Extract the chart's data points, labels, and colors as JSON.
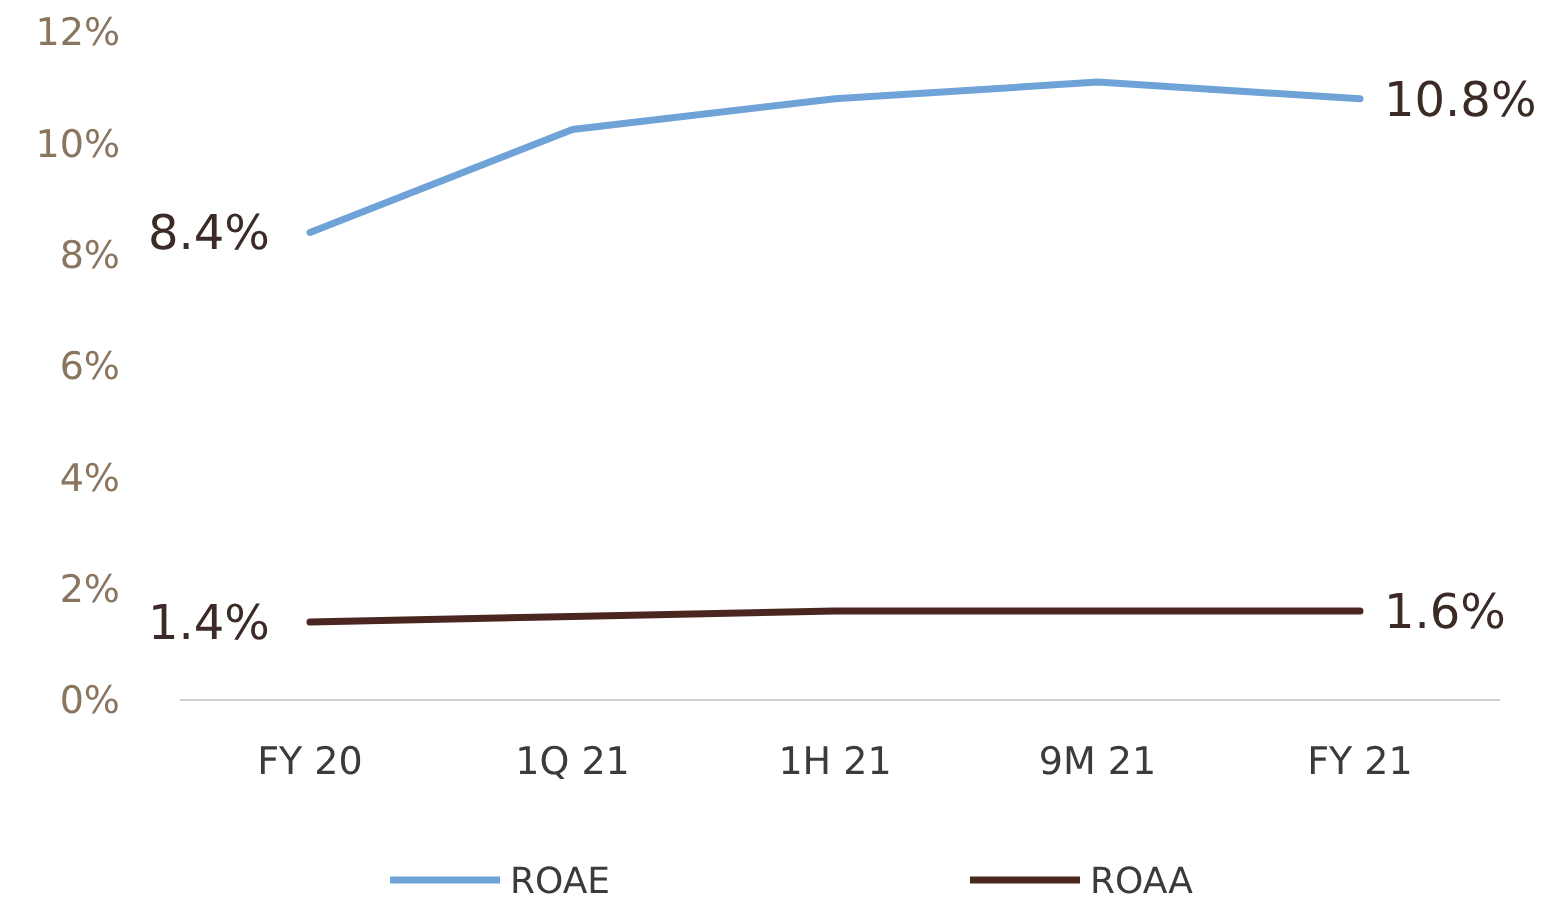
{
  "chart_data": {
    "type": "line",
    "categories": [
      "FY 20",
      "1Q 21",
      "1H 21",
      "9M 21",
      "FY 21"
    ],
    "series": [
      {
        "name": "ROAE",
        "color": "#6fa3d8",
        "values": [
          8.4,
          10.25,
          10.8,
          11.1,
          10.8
        ],
        "value_labels": [
          "8.4%",
          null,
          null,
          null,
          "10.8%"
        ]
      },
      {
        "name": "ROAA",
        "color": "#4b2620",
        "values": [
          1.4,
          1.5,
          1.6,
          1.6,
          1.6
        ],
        "value_labels": [
          "1.4%",
          null,
          null,
          null,
          "1.6%"
        ]
      }
    ],
    "ylim": [
      0,
      12
    ],
    "yticks": [
      {
        "value": 0,
        "label": "0%"
      },
      {
        "value": 2,
        "label": "2%"
      },
      {
        "value": 4,
        "label": "4%"
      },
      {
        "value": 6,
        "label": "6%"
      },
      {
        "value": 8,
        "label": "8%"
      },
      {
        "value": 10,
        "label": "10%"
      },
      {
        "value": 12,
        "label": "12%"
      }
    ],
    "grid": false,
    "legend": "bottom",
    "marker": "none",
    "line_style": "solid"
  }
}
